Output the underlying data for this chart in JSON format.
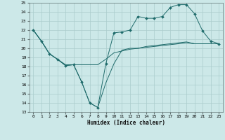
{
  "xlabel": "Humidex (Indice chaleur)",
  "xlim": [
    -0.5,
    23.5
  ],
  "ylim": [
    13,
    25
  ],
  "yticks": [
    13,
    14,
    15,
    16,
    17,
    18,
    19,
    20,
    21,
    22,
    23,
    24,
    25
  ],
  "xticks": [
    0,
    1,
    2,
    3,
    4,
    5,
    6,
    7,
    8,
    9,
    10,
    11,
    12,
    13,
    14,
    15,
    16,
    17,
    18,
    19,
    20,
    21,
    22,
    23
  ],
  "bg_color": "#cce8e8",
  "line_color": "#1f6b6b",
  "grid_color": "#aacccc",
  "line1_x": [
    0,
    1,
    2,
    3,
    4,
    5,
    6,
    7,
    8,
    9,
    10,
    11,
    12,
    13,
    14,
    15,
    16,
    17,
    18,
    19,
    20,
    21,
    22,
    23
  ],
  "line1_y": [
    22.0,
    20.8,
    19.4,
    18.8,
    18.2,
    18.2,
    18.2,
    18.2,
    18.2,
    18.8,
    19.5,
    19.7,
    19.9,
    20.0,
    20.2,
    20.3,
    20.4,
    20.5,
    20.6,
    20.7,
    20.5,
    20.5,
    20.5,
    20.5
  ],
  "line2_x": [
    0,
    1,
    2,
    3,
    4,
    5,
    6,
    7,
    8,
    9,
    10,
    11,
    12,
    13,
    14,
    15,
    16,
    17,
    18,
    19,
    20,
    21,
    22,
    23
  ],
  "line2_y": [
    22.0,
    20.8,
    19.4,
    18.8,
    18.1,
    18.2,
    16.3,
    14.0,
    13.5,
    16.2,
    18.3,
    19.8,
    20.0,
    20.0,
    20.1,
    20.2,
    20.3,
    20.4,
    20.5,
    20.6,
    20.5,
    20.5,
    20.5,
    20.5
  ],
  "line3_x": [
    0,
    1,
    2,
    3,
    4,
    5,
    6,
    7,
    8,
    9,
    10,
    11,
    12,
    13,
    14,
    15,
    16,
    17,
    18,
    19,
    20,
    21,
    22,
    23
  ],
  "line3_y": [
    22.0,
    20.8,
    19.4,
    18.8,
    18.1,
    18.2,
    16.3,
    14.0,
    13.5,
    18.3,
    21.7,
    21.8,
    22.0,
    23.5,
    23.3,
    23.3,
    23.5,
    24.5,
    24.8,
    24.8,
    23.8,
    21.9,
    20.8,
    20.5
  ]
}
